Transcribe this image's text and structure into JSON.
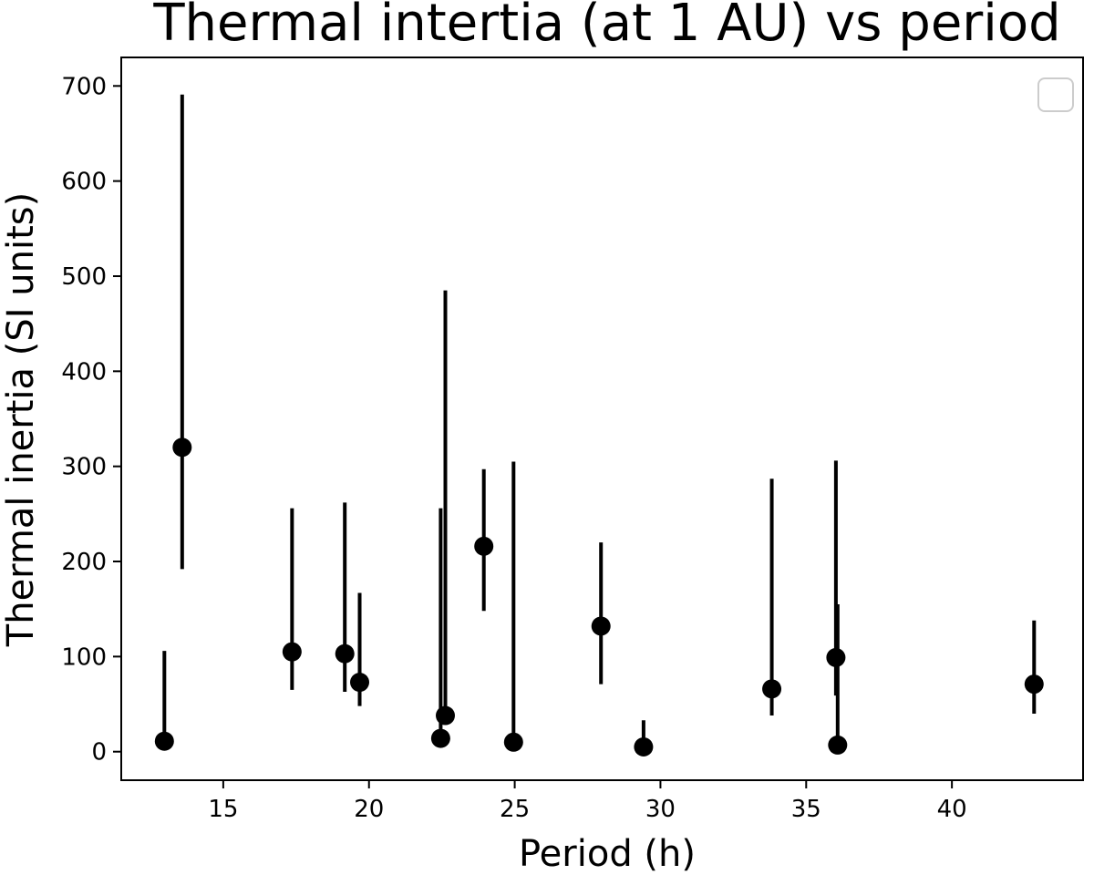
{
  "chart_data": {
    "type": "scatter",
    "title": "Thermal intertia (at 1 AU) vs period",
    "xlabel": "Period (h)",
    "ylabel": "Thermal inertia (SI units)",
    "xlim": [
      11.5,
      44.5
    ],
    "ylim": [
      -30,
      730
    ],
    "xticks": [
      15,
      20,
      25,
      30,
      35,
      40
    ],
    "yticks": [
      0,
      100,
      200,
      300,
      400,
      500,
      600,
      700
    ],
    "grid": false,
    "legend": {
      "placement": "top-right",
      "entries": []
    },
    "marker_color": "#000000",
    "points": [
      {
        "x": 12.98,
        "y": 11,
        "ylo": 11,
        "yhi": 106
      },
      {
        "x": 13.59,
        "y": 320,
        "ylo": 192,
        "yhi": 691
      },
      {
        "x": 17.36,
        "y": 105,
        "ylo": 65,
        "yhi": 256
      },
      {
        "x": 19.17,
        "y": 103,
        "ylo": 63,
        "yhi": 262
      },
      {
        "x": 19.68,
        "y": 73,
        "ylo": 48,
        "yhi": 167
      },
      {
        "x": 22.46,
        "y": 14,
        "ylo": 14,
        "yhi": 256
      },
      {
        "x": 22.62,
        "y": 38,
        "ylo": 38,
        "yhi": 485
      },
      {
        "x": 23.94,
        "y": 216,
        "ylo": 148,
        "yhi": 297
      },
      {
        "x": 24.96,
        "y": 10,
        "ylo": 10,
        "yhi": 305
      },
      {
        "x": 27.96,
        "y": 132,
        "ylo": 71,
        "yhi": 220
      },
      {
        "x": 29.42,
        "y": 5,
        "ylo": 5,
        "yhi": 33
      },
      {
        "x": 33.82,
        "y": 66,
        "ylo": 38,
        "yhi": 287
      },
      {
        "x": 36.02,
        "y": 99,
        "ylo": 59,
        "yhi": 306
      },
      {
        "x": 36.08,
        "y": 7,
        "ylo": 7,
        "yhi": 155
      },
      {
        "x": 42.82,
        "y": 71,
        "ylo": 40,
        "yhi": 138
      }
    ]
  }
}
